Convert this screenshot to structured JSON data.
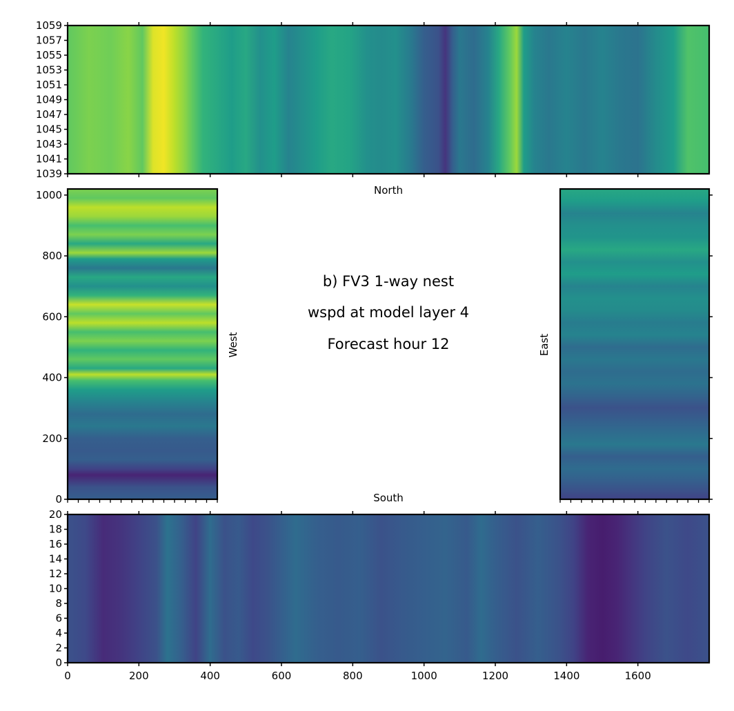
{
  "chart_data": [
    {
      "type": "heatmap",
      "panel": "north",
      "label": "North",
      "x_range": [
        0,
        1800
      ],
      "y_range": [
        1039,
        1059
      ],
      "x_ticks": [
        0,
        200,
        400,
        600,
        800,
        1000,
        1200,
        1400,
        1600
      ],
      "y_ticks": [
        "1039",
        "1041",
        "1043",
        "1045",
        "1047",
        "1049",
        "1051",
        "1053",
        "1055",
        "1057",
        "1059"
      ],
      "orientation": "vertical-stripes",
      "colormap": "viridis",
      "color_range": [
        0,
        1
      ],
      "profile_stops": [
        0,
        60,
        120,
        170,
        210,
        240,
        270,
        300,
        330,
        350,
        380,
        420,
        460,
        500,
        540,
        580,
        620,
        660,
        700,
        740,
        790,
        840,
        880,
        920,
        960,
        1000,
        1040,
        1060,
        1080,
        1100,
        1140,
        1180,
        1210,
        1240,
        1260,
        1280,
        1310,
        1350,
        1400,
        1450,
        1500,
        1550,
        1600,
        1650,
        1700,
        1740,
        1800
      ],
      "profile_values": [
        0.75,
        0.8,
        0.78,
        0.82,
        0.75,
        0.95,
        0.98,
        0.9,
        0.82,
        0.75,
        0.65,
        0.6,
        0.55,
        0.6,
        0.5,
        0.55,
        0.45,
        0.5,
        0.55,
        0.6,
        0.58,
        0.5,
        0.48,
        0.5,
        0.42,
        0.3,
        0.25,
        0.15,
        0.3,
        0.4,
        0.35,
        0.45,
        0.6,
        0.75,
        0.85,
        0.55,
        0.45,
        0.4,
        0.45,
        0.4,
        0.45,
        0.4,
        0.38,
        0.48,
        0.55,
        0.72,
        0.7
      ]
    },
    {
      "type": "heatmap",
      "panel": "west",
      "label": "West",
      "x_range": [
        0,
        420
      ],
      "y_range": [
        0,
        1020
      ],
      "y_ticks": [
        "0",
        "200",
        "400",
        "600",
        "800",
        "1000"
      ],
      "orientation": "horizontal-stripes",
      "colormap": "viridis",
      "color_range": [
        0,
        1
      ],
      "profile_stops": [
        0,
        40,
        80,
        100,
        130,
        160,
        200,
        240,
        280,
        320,
        360,
        390,
        410,
        430,
        460,
        490,
        520,
        550,
        580,
        610,
        640,
        670,
        700,
        730,
        760,
        790,
        810,
        840,
        870,
        900,
        930,
        960,
        990,
        1020
      ],
      "profile_values": [
        0.3,
        0.25,
        0.1,
        0.2,
        0.3,
        0.28,
        0.3,
        0.4,
        0.35,
        0.45,
        0.55,
        0.7,
        0.9,
        0.6,
        0.75,
        0.65,
        0.8,
        0.7,
        0.9,
        0.75,
        0.92,
        0.65,
        0.5,
        0.6,
        0.4,
        0.55,
        0.85,
        0.6,
        0.8,
        0.7,
        0.85,
        0.9,
        0.75,
        0.8
      ]
    },
    {
      "type": "heatmap",
      "panel": "east",
      "label": "East",
      "x_range": [
        0,
        420
      ],
      "y_range": [
        0,
        1020
      ],
      "orientation": "horizontal-stripes",
      "colormap": "viridis",
      "color_range": [
        0,
        1
      ],
      "profile_stops": [
        0,
        30,
        60,
        100,
        140,
        180,
        220,
        260,
        300,
        340,
        380,
        420,
        460,
        500,
        540,
        580,
        620,
        660,
        700,
        740,
        780,
        820,
        860,
        900,
        940,
        980,
        1020
      ],
      "profile_values": [
        0.2,
        0.25,
        0.3,
        0.35,
        0.3,
        0.4,
        0.35,
        0.3,
        0.25,
        0.32,
        0.38,
        0.35,
        0.4,
        0.35,
        0.45,
        0.42,
        0.48,
        0.5,
        0.45,
        0.55,
        0.5,
        0.6,
        0.52,
        0.5,
        0.45,
        0.55,
        0.6
      ]
    },
    {
      "type": "heatmap",
      "panel": "south",
      "label": "South",
      "x_range": [
        0,
        1800
      ],
      "y_range": [
        0,
        20
      ],
      "x_ticks": [
        "0",
        "200",
        "400",
        "600",
        "800",
        "1000",
        "1200",
        "1400",
        "1600"
      ],
      "y_ticks": [
        "0",
        "2",
        "4",
        "6",
        "8",
        "10",
        "12",
        "14",
        "16",
        "18",
        "20"
      ],
      "orientation": "vertical-stripes",
      "colormap": "viridis",
      "color_range": [
        0,
        1
      ],
      "profile_stops": [
        0,
        50,
        100,
        150,
        200,
        250,
        280,
        320,
        360,
        400,
        440,
        480,
        520,
        560,
        600,
        640,
        700,
        760,
        820,
        880,
        940,
        1000,
        1060,
        1120,
        1160,
        1200,
        1260,
        1320,
        1380,
        1420,
        1460,
        1500,
        1540,
        1580,
        1620,
        1680,
        1740,
        1800
      ],
      "profile_values": [
        0.25,
        0.22,
        0.12,
        0.15,
        0.2,
        0.25,
        0.38,
        0.3,
        0.2,
        0.35,
        0.25,
        0.28,
        0.22,
        0.25,
        0.3,
        0.35,
        0.3,
        0.28,
        0.3,
        0.25,
        0.28,
        0.3,
        0.32,
        0.28,
        0.35,
        0.3,
        0.25,
        0.3,
        0.25,
        0.2,
        0.1,
        0.08,
        0.1,
        0.15,
        0.2,
        0.25,
        0.22,
        0.25
      ]
    }
  ],
  "title_lines": [
    "b) FV3 1-way nest",
    "wspd at model layer 4",
    "Forecast hour 12"
  ]
}
